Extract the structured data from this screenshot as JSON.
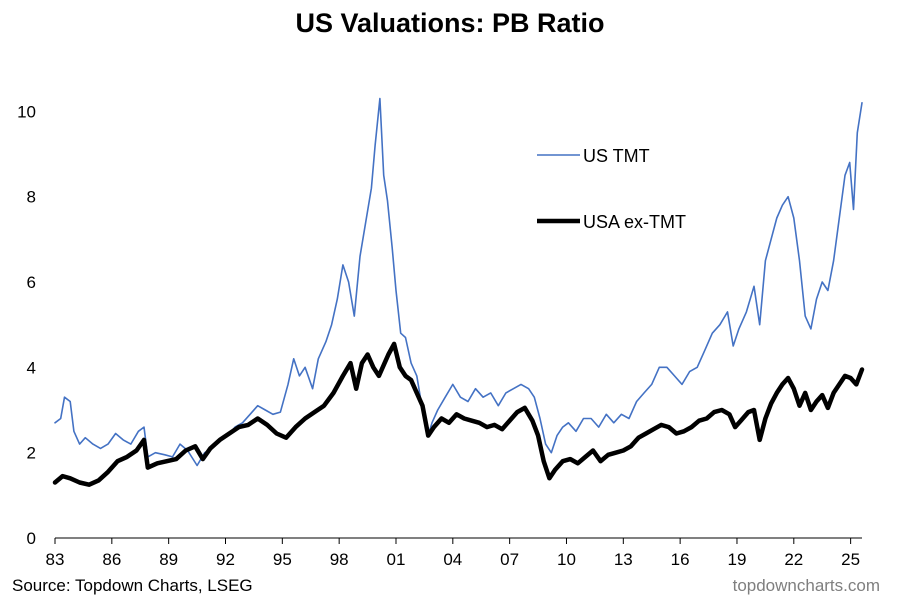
{
  "chart_data": {
    "type": "line",
    "title": "US Valuations: PB Ratio",
    "xlabel": "",
    "ylabel": "",
    "ylim": [
      0,
      10.5
    ],
    "yticks": [
      0,
      2,
      4,
      6,
      8,
      10
    ],
    "xlim": [
      1983.0,
      2025.6
    ],
    "xticks": [
      {
        "value": 1983,
        "label": "83"
      },
      {
        "value": 1986,
        "label": "86"
      },
      {
        "value": 1989,
        "label": "89"
      },
      {
        "value": 1992,
        "label": "92"
      },
      {
        "value": 1995,
        "label": "95"
      },
      {
        "value": 1998,
        "label": "98"
      },
      {
        "value": 2001,
        "label": "01"
      },
      {
        "value": 2004,
        "label": "04"
      },
      {
        "value": 2007,
        "label": "07"
      },
      {
        "value": 2010,
        "label": "10"
      },
      {
        "value": 2013,
        "label": "13"
      },
      {
        "value": 2016,
        "label": "16"
      },
      {
        "value": 2019,
        "label": "19"
      },
      {
        "value": 2022,
        "label": "22"
      },
      {
        "value": 2025,
        "label": "25"
      }
    ],
    "legend_position": "upper-right",
    "series": [
      {
        "name": "US TMT",
        "color": "#4472C4",
        "points": [
          [
            1983.0,
            2.7
          ],
          [
            1983.3,
            2.8
          ],
          [
            1983.5,
            3.3
          ],
          [
            1983.8,
            3.2
          ],
          [
            1984.0,
            2.5
          ],
          [
            1984.3,
            2.2
          ],
          [
            1984.6,
            2.35
          ],
          [
            1985.0,
            2.2
          ],
          [
            1985.4,
            2.1
          ],
          [
            1985.8,
            2.2
          ],
          [
            1986.2,
            2.45
          ],
          [
            1986.6,
            2.3
          ],
          [
            1987.0,
            2.2
          ],
          [
            1987.4,
            2.5
          ],
          [
            1987.7,
            2.6
          ],
          [
            1987.9,
            1.9
          ],
          [
            1988.3,
            2.0
          ],
          [
            1988.8,
            1.95
          ],
          [
            1989.2,
            1.9
          ],
          [
            1989.6,
            2.2
          ],
          [
            1990.0,
            2.05
          ],
          [
            1990.5,
            1.7
          ],
          [
            1990.9,
            2.0
          ],
          [
            1991.3,
            2.1
          ],
          [
            1991.7,
            2.3
          ],
          [
            1992.1,
            2.4
          ],
          [
            1992.5,
            2.6
          ],
          [
            1992.9,
            2.7
          ],
          [
            1993.3,
            2.9
          ],
          [
            1993.7,
            3.1
          ],
          [
            1994.1,
            3.0
          ],
          [
            1994.5,
            2.9
          ],
          [
            1994.9,
            2.95
          ],
          [
            1995.3,
            3.6
          ],
          [
            1995.6,
            4.2
          ],
          [
            1995.9,
            3.8
          ],
          [
            1996.2,
            4.0
          ],
          [
            1996.6,
            3.5
          ],
          [
            1996.9,
            4.2
          ],
          [
            1997.3,
            4.6
          ],
          [
            1997.6,
            5.0
          ],
          [
            1997.9,
            5.6
          ],
          [
            1998.2,
            6.4
          ],
          [
            1998.5,
            6.0
          ],
          [
            1998.8,
            5.2
          ],
          [
            1999.1,
            6.6
          ],
          [
            1999.4,
            7.4
          ],
          [
            1999.7,
            8.2
          ],
          [
            1999.9,
            9.2
          ],
          [
            2000.15,
            10.3
          ],
          [
            2000.35,
            8.5
          ],
          [
            2000.55,
            7.9
          ],
          [
            2000.8,
            6.8
          ],
          [
            2001.0,
            5.8
          ],
          [
            2001.25,
            4.8
          ],
          [
            2001.5,
            4.7
          ],
          [
            2001.8,
            4.1
          ],
          [
            2002.1,
            3.8
          ],
          [
            2002.4,
            3.0
          ],
          [
            2002.7,
            2.4
          ],
          [
            2002.9,
            2.7
          ],
          [
            2003.2,
            3.0
          ],
          [
            2003.6,
            3.3
          ],
          [
            2004.0,
            3.6
          ],
          [
            2004.4,
            3.3
          ],
          [
            2004.8,
            3.2
          ],
          [
            2005.2,
            3.5
          ],
          [
            2005.6,
            3.3
          ],
          [
            2006.0,
            3.4
          ],
          [
            2006.4,
            3.1
          ],
          [
            2006.8,
            3.4
          ],
          [
            2007.2,
            3.5
          ],
          [
            2007.6,
            3.6
          ],
          [
            2008.0,
            3.5
          ],
          [
            2008.3,
            3.3
          ],
          [
            2008.6,
            2.8
          ],
          [
            2008.9,
            2.2
          ],
          [
            2009.2,
            2.0
          ],
          [
            2009.5,
            2.4
          ],
          [
            2009.8,
            2.6
          ],
          [
            2010.1,
            2.7
          ],
          [
            2010.5,
            2.5
          ],
          [
            2010.9,
            2.8
          ],
          [
            2011.3,
            2.8
          ],
          [
            2011.7,
            2.6
          ],
          [
            2012.1,
            2.9
          ],
          [
            2012.5,
            2.7
          ],
          [
            2012.9,
            2.9
          ],
          [
            2013.3,
            2.8
          ],
          [
            2013.7,
            3.2
          ],
          [
            2014.1,
            3.4
          ],
          [
            2014.5,
            3.6
          ],
          [
            2014.9,
            4.0
          ],
          [
            2015.3,
            4.0
          ],
          [
            2015.7,
            3.8
          ],
          [
            2016.1,
            3.6
          ],
          [
            2016.5,
            3.9
          ],
          [
            2016.9,
            4.0
          ],
          [
            2017.3,
            4.4
          ],
          [
            2017.7,
            4.8
          ],
          [
            2018.1,
            5.0
          ],
          [
            2018.5,
            5.3
          ],
          [
            2018.8,
            4.5
          ],
          [
            2019.1,
            4.9
          ],
          [
            2019.5,
            5.3
          ],
          [
            2019.9,
            5.9
          ],
          [
            2020.2,
            5.0
          ],
          [
            2020.5,
            6.5
          ],
          [
            2020.8,
            7.0
          ],
          [
            2021.1,
            7.5
          ],
          [
            2021.4,
            7.8
          ],
          [
            2021.7,
            8.0
          ],
          [
            2022.0,
            7.5
          ],
          [
            2022.3,
            6.5
          ],
          [
            2022.6,
            5.2
          ],
          [
            2022.9,
            4.9
          ],
          [
            2023.2,
            5.6
          ],
          [
            2023.5,
            6.0
          ],
          [
            2023.8,
            5.8
          ],
          [
            2024.1,
            6.5
          ],
          [
            2024.4,
            7.5
          ],
          [
            2024.7,
            8.5
          ],
          [
            2024.95,
            8.8
          ],
          [
            2025.15,
            7.7
          ],
          [
            2025.35,
            9.5
          ],
          [
            2025.6,
            10.2
          ]
        ]
      },
      {
        "name": "USA ex-TMT",
        "color": "#000000",
        "points": [
          [
            1983.0,
            1.3
          ],
          [
            1983.4,
            1.45
          ],
          [
            1983.8,
            1.4
          ],
          [
            1984.3,
            1.3
          ],
          [
            1984.8,
            1.25
          ],
          [
            1985.3,
            1.35
          ],
          [
            1985.8,
            1.55
          ],
          [
            1986.3,
            1.8
          ],
          [
            1986.8,
            1.9
          ],
          [
            1987.3,
            2.05
          ],
          [
            1987.7,
            2.3
          ],
          [
            1987.9,
            1.65
          ],
          [
            1988.4,
            1.75
          ],
          [
            1988.9,
            1.8
          ],
          [
            1989.4,
            1.85
          ],
          [
            1989.9,
            2.05
          ],
          [
            1990.4,
            2.15
          ],
          [
            1990.8,
            1.85
          ],
          [
            1991.2,
            2.1
          ],
          [
            1991.7,
            2.3
          ],
          [
            1992.2,
            2.45
          ],
          [
            1992.7,
            2.6
          ],
          [
            1993.2,
            2.65
          ],
          [
            1993.7,
            2.8
          ],
          [
            1994.2,
            2.65
          ],
          [
            1994.7,
            2.45
          ],
          [
            1995.2,
            2.35
          ],
          [
            1995.7,
            2.6
          ],
          [
            1996.2,
            2.8
          ],
          [
            1996.7,
            2.95
          ],
          [
            1997.2,
            3.1
          ],
          [
            1997.7,
            3.4
          ],
          [
            1998.2,
            3.8
          ],
          [
            1998.6,
            4.1
          ],
          [
            1998.9,
            3.5
          ],
          [
            1999.2,
            4.1
          ],
          [
            1999.5,
            4.3
          ],
          [
            1999.8,
            4.0
          ],
          [
            2000.1,
            3.8
          ],
          [
            2000.4,
            4.1
          ],
          [
            2000.6,
            4.3
          ],
          [
            2000.9,
            4.55
          ],
          [
            2001.2,
            4.0
          ],
          [
            2001.5,
            3.8
          ],
          [
            2001.8,
            3.7
          ],
          [
            2002.1,
            3.4
          ],
          [
            2002.4,
            3.1
          ],
          [
            2002.7,
            2.4
          ],
          [
            2003.0,
            2.6
          ],
          [
            2003.4,
            2.8
          ],
          [
            2003.8,
            2.7
          ],
          [
            2004.2,
            2.9
          ],
          [
            2004.6,
            2.8
          ],
          [
            2005.0,
            2.75
          ],
          [
            2005.4,
            2.7
          ],
          [
            2005.8,
            2.6
          ],
          [
            2006.2,
            2.65
          ],
          [
            2006.6,
            2.55
          ],
          [
            2007.0,
            2.75
          ],
          [
            2007.4,
            2.95
          ],
          [
            2007.8,
            3.05
          ],
          [
            2008.2,
            2.75
          ],
          [
            2008.5,
            2.4
          ],
          [
            2008.8,
            1.8
          ],
          [
            2009.1,
            1.4
          ],
          [
            2009.4,
            1.6
          ],
          [
            2009.8,
            1.8
          ],
          [
            2010.2,
            1.85
          ],
          [
            2010.6,
            1.75
          ],
          [
            2011.0,
            1.9
          ],
          [
            2011.4,
            2.05
          ],
          [
            2011.8,
            1.8
          ],
          [
            2012.2,
            1.95
          ],
          [
            2012.6,
            2.0
          ],
          [
            2013.0,
            2.05
          ],
          [
            2013.4,
            2.15
          ],
          [
            2013.8,
            2.35
          ],
          [
            2014.2,
            2.45
          ],
          [
            2014.6,
            2.55
          ],
          [
            2015.0,
            2.65
          ],
          [
            2015.4,
            2.6
          ],
          [
            2015.8,
            2.45
          ],
          [
            2016.2,
            2.5
          ],
          [
            2016.6,
            2.6
          ],
          [
            2017.0,
            2.75
          ],
          [
            2017.4,
            2.8
          ],
          [
            2017.8,
            2.95
          ],
          [
            2018.2,
            3.0
          ],
          [
            2018.6,
            2.9
          ],
          [
            2018.9,
            2.6
          ],
          [
            2019.2,
            2.75
          ],
          [
            2019.6,
            2.95
          ],
          [
            2019.9,
            3.0
          ],
          [
            2020.2,
            2.3
          ],
          [
            2020.5,
            2.8
          ],
          [
            2020.8,
            3.15
          ],
          [
            2021.1,
            3.4
          ],
          [
            2021.4,
            3.6
          ],
          [
            2021.7,
            3.75
          ],
          [
            2022.0,
            3.5
          ],
          [
            2022.3,
            3.1
          ],
          [
            2022.6,
            3.4
          ],
          [
            2022.9,
            3.0
          ],
          [
            2023.2,
            3.2
          ],
          [
            2023.5,
            3.35
          ],
          [
            2023.8,
            3.05
          ],
          [
            2024.1,
            3.4
          ],
          [
            2024.4,
            3.6
          ],
          [
            2024.7,
            3.8
          ],
          [
            2025.0,
            3.75
          ],
          [
            2025.3,
            3.6
          ],
          [
            2025.6,
            3.95
          ]
        ]
      }
    ]
  },
  "footer": {
    "source": "Source: Topdown Charts, LSEG",
    "brand": "topdowncharts.com"
  }
}
